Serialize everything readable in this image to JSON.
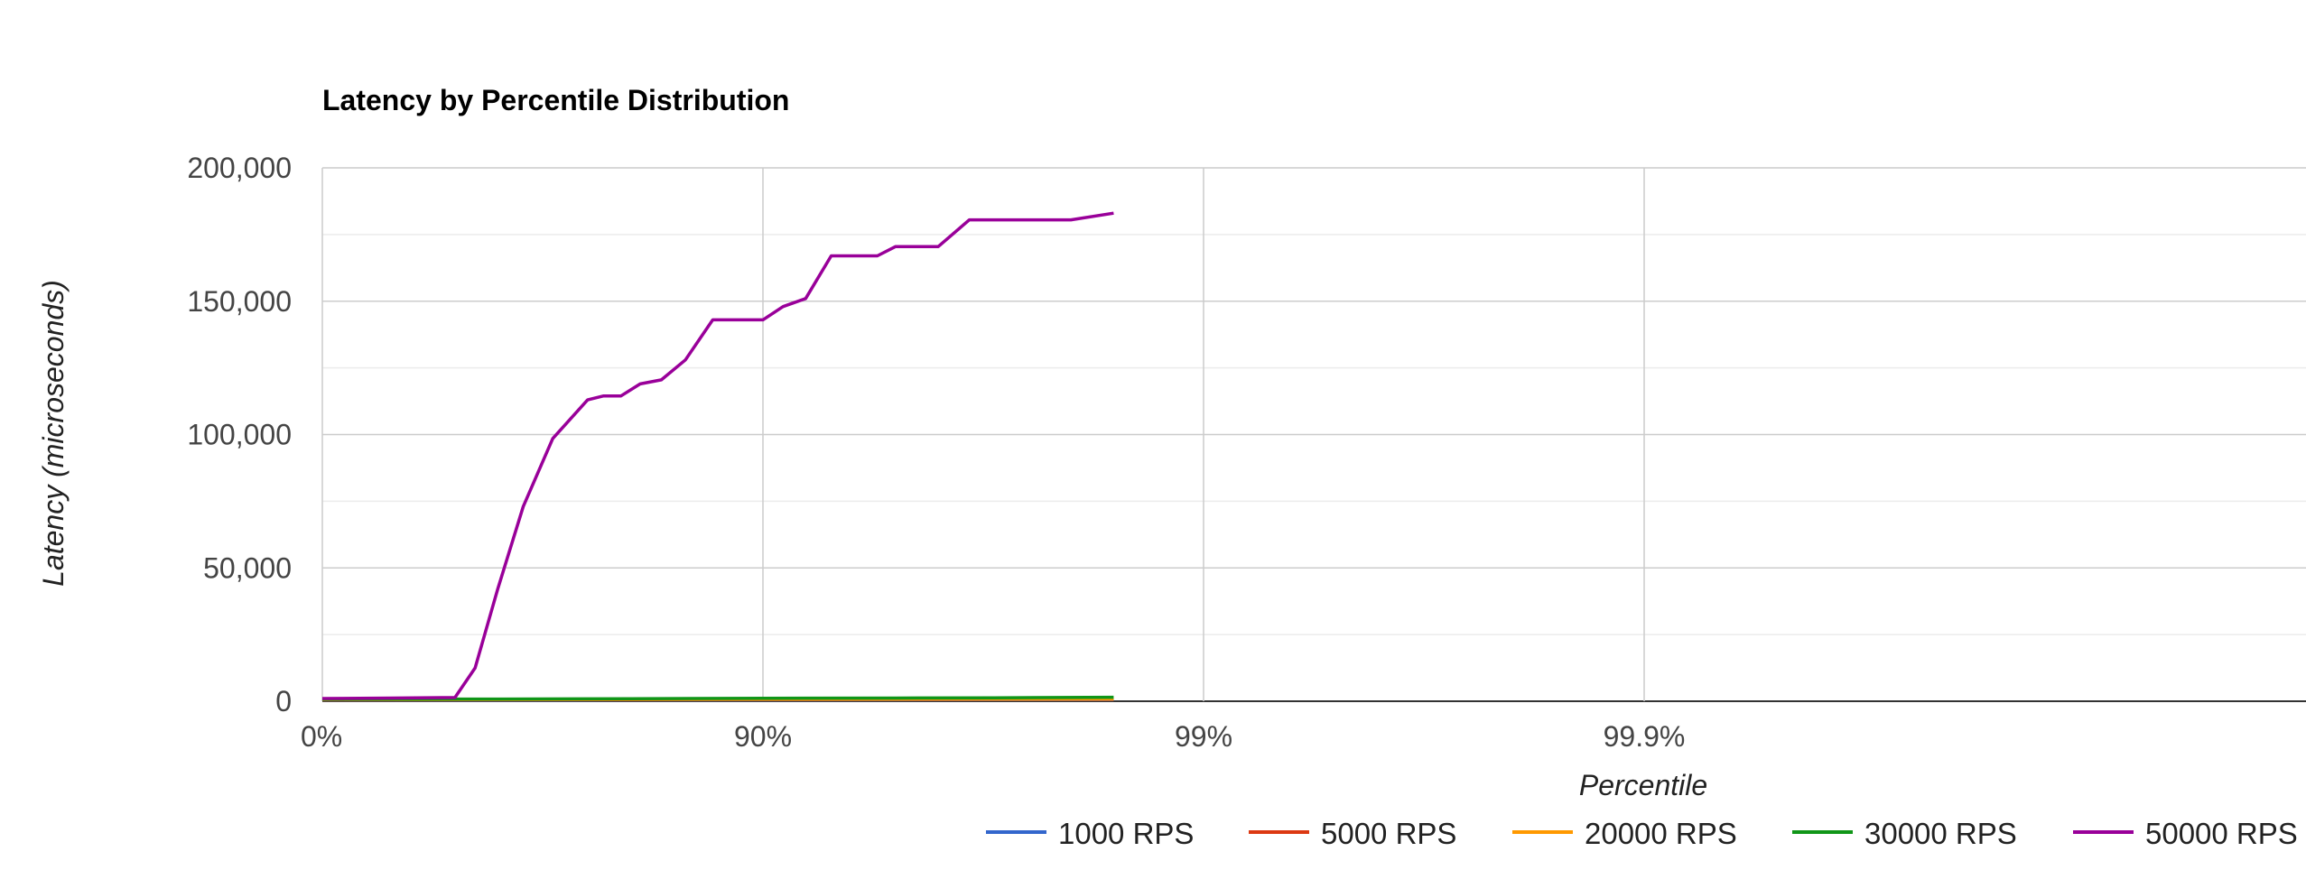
{
  "chart_data": {
    "type": "line",
    "title": "Latency by Percentile Distribution",
    "xlabel": "Percentile",
    "ylabel": "Latency (microseconds)",
    "x_scale": "inverse-percentile-log",
    "x_ticks": [
      {
        "value": 0,
        "label": "0%"
      },
      {
        "value": 90,
        "label": "90%"
      },
      {
        "value": 99,
        "label": "99%"
      },
      {
        "value": 99.9,
        "label": "99.9%"
      }
    ],
    "ylim": [
      0,
      200000
    ],
    "y_ticks": [
      {
        "value": 0,
        "label": "0"
      },
      {
        "value": 50000,
        "label": "50,000"
      },
      {
        "value": 100000,
        "label": "100,000"
      },
      {
        "value": 150000,
        "label": "150,000"
      },
      {
        "value": 200000,
        "label": "200,000"
      }
    ],
    "grid": true,
    "legend_position": "bottom",
    "series": [
      {
        "name": "1000 RPS",
        "color": "#3366cc",
        "points": [
          [
            0,
            400
          ],
          [
            60,
            450
          ],
          [
            80,
            500
          ],
          [
            90,
            520
          ],
          [
            95,
            550
          ],
          [
            97,
            580
          ],
          [
            98.4,
            600
          ]
        ]
      },
      {
        "name": "5000 RPS",
        "color": "#dc3912",
        "points": [
          [
            0,
            500
          ],
          [
            60,
            550
          ],
          [
            80,
            600
          ],
          [
            90,
            650
          ],
          [
            95,
            680
          ],
          [
            97,
            700
          ],
          [
            98.4,
            720
          ]
        ]
      },
      {
        "name": "20000 RPS",
        "color": "#ff9900",
        "points": [
          [
            0,
            600
          ],
          [
            60,
            650
          ],
          [
            80,
            700
          ],
          [
            90,
            750
          ],
          [
            95,
            780
          ],
          [
            97,
            800
          ],
          [
            98.4,
            850
          ]
        ]
      },
      {
        "name": "30000 RPS",
        "color": "#109618",
        "points": [
          [
            0,
            700
          ],
          [
            60,
            800
          ],
          [
            80,
            900
          ],
          [
            90,
            1100
          ],
          [
            95,
            1200
          ],
          [
            97,
            1300
          ],
          [
            98.4,
            1500
          ]
        ]
      },
      {
        "name": "50000 RPS",
        "color": "#990099",
        "points": [
          [
            0,
            1000
          ],
          [
            30,
            1200
          ],
          [
            50,
            1400
          ],
          [
            55,
            12500
          ],
          [
            60,
            42000
          ],
          [
            65,
            73000
          ],
          [
            70,
            98500
          ],
          [
            75,
            113000
          ],
          [
            77,
            114500
          ],
          [
            79,
            114500
          ],
          [
            81,
            119000
          ],
          [
            83,
            120500
          ],
          [
            85,
            128000
          ],
          [
            87,
            143000
          ],
          [
            90,
            143000
          ],
          [
            91,
            148000
          ],
          [
            92,
            151000
          ],
          [
            93,
            167000
          ],
          [
            94.5,
            167000
          ],
          [
            95,
            170500
          ],
          [
            96,
            170500
          ],
          [
            96.6,
            180500
          ],
          [
            97.5,
            180500
          ],
          [
            98,
            180500
          ],
          [
            98.4,
            183000
          ]
        ]
      }
    ]
  }
}
